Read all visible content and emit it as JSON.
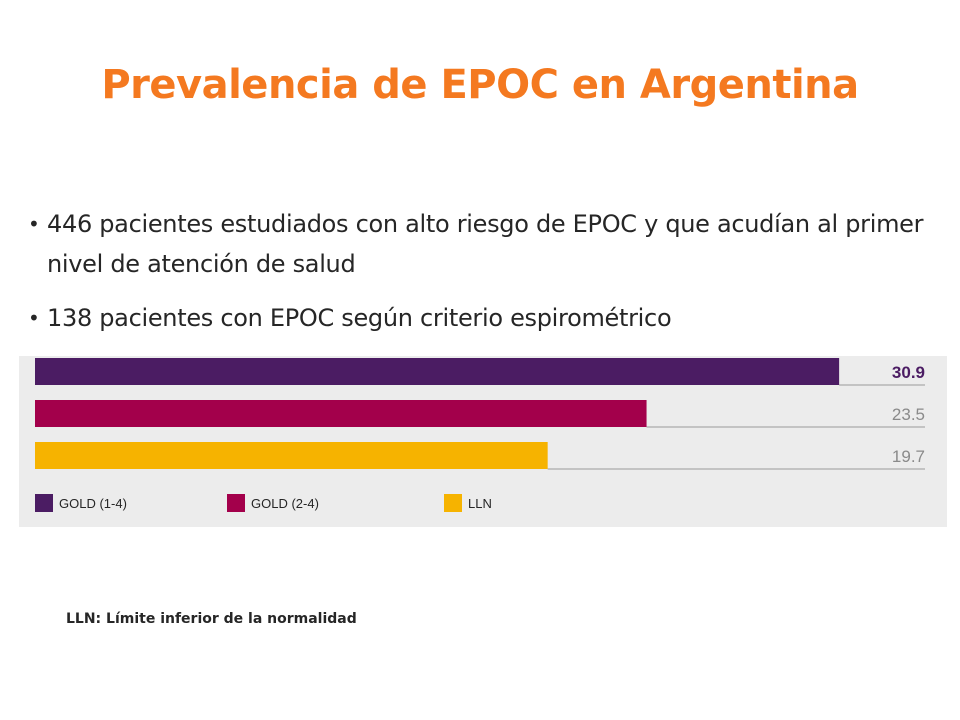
{
  "slide": {
    "title": "Prevalencia de EPOC en Argentina",
    "bullets": [
      "446 pacientes estudiados con alto riesgo de EPOC y que acudían al primer nivel de atención de salud",
      "138 pacientes con EPOC según criterio espirométrico"
    ],
    "bullet_glyph": "•",
    "footnote": "LLN: Límite inferior de  la normalidad"
  },
  "chart_data": {
    "type": "bar",
    "orientation": "horizontal",
    "categories": [
      "GOLD (1-4)",
      "GOLD (2-4)",
      "LLN"
    ],
    "values": [
      30.9,
      23.5,
      19.7
    ],
    "value_labels": [
      "30.9",
      "23.5",
      "19.7"
    ],
    "highlight_first_label": true,
    "colors": [
      "#4b1c63",
      "#a3004b",
      "#f6b300"
    ],
    "value_label_colors": [
      "#4b1c63",
      "#8a8a8a",
      "#8a8a8a"
    ],
    "background_color": "#ececec",
    "xlim": [
      0,
      34.2
    ],
    "legend": {
      "position": "bottom-left",
      "entries": [
        "GOLD (1-4)",
        "GOLD (2-4)",
        "LLN"
      ]
    },
    "grid": false
  }
}
